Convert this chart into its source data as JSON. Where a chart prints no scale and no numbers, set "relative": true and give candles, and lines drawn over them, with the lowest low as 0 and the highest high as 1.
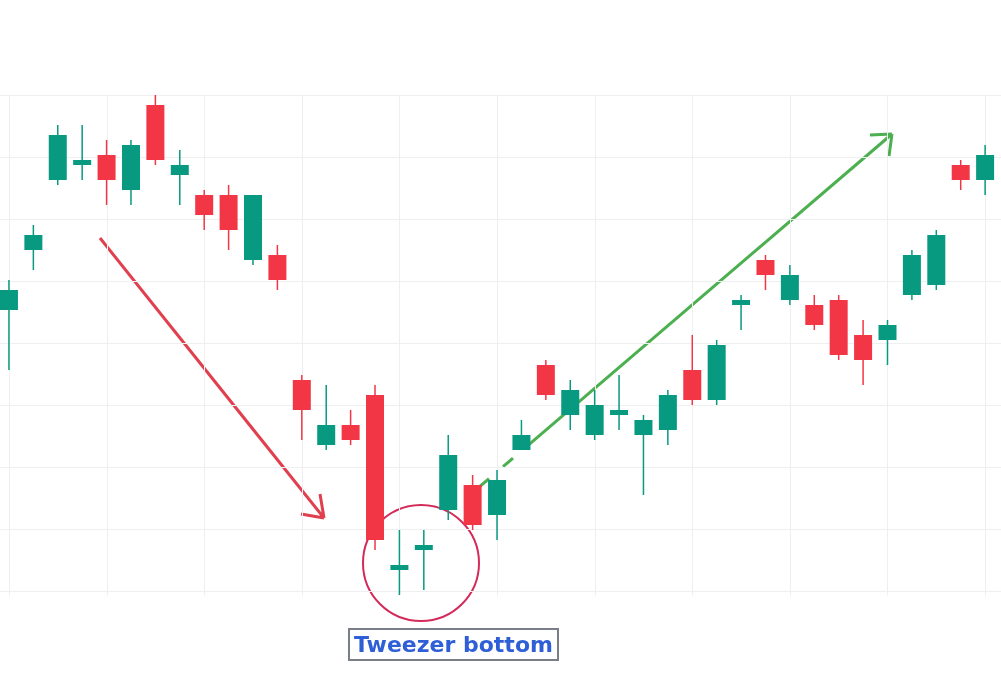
{
  "chart_data": {
    "type": "candlestick",
    "relative": true,
    "grid": true,
    "categories": [
      null,
      null,
      null,
      null,
      null,
      null,
      null,
      null,
      null,
      null,
      null,
      null,
      null,
      null,
      null,
      null,
      null,
      null,
      null,
      null,
      null,
      null,
      null,
      null,
      null,
      null,
      null,
      null,
      null,
      null,
      null,
      null,
      null,
      null,
      null,
      null,
      null,
      null,
      null,
      null,
      null
    ],
    "ohlc": [
      [
        0.57,
        0.63,
        0.45,
        0.61
      ],
      [
        0.69,
        0.74,
        0.65,
        0.72
      ],
      [
        0.83,
        0.94,
        0.82,
        0.92
      ],
      [
        0.86,
        0.94,
        0.83,
        0.87
      ],
      [
        0.88,
        0.91,
        0.78,
        0.83
      ],
      [
        0.81,
        0.91,
        0.78,
        0.9
      ],
      [
        0.98,
        1.0,
        0.86,
        0.87
      ],
      [
        0.84,
        0.89,
        0.78,
        0.86
      ],
      [
        0.8,
        0.81,
        0.73,
        0.76
      ],
      [
        0.8,
        0.82,
        0.69,
        0.73
      ],
      [
        0.67,
        0.8,
        0.66,
        0.8
      ],
      [
        0.68,
        0.7,
        0.61,
        0.63
      ],
      [
        0.43,
        0.44,
        0.31,
        0.37
      ],
      [
        0.3,
        0.42,
        0.29,
        0.34
      ],
      [
        0.34,
        0.37,
        0.3,
        0.31
      ],
      [
        0.4,
        0.42,
        0.09,
        0.11
      ],
      [
        0.05,
        0.13,
        0.0,
        0.06
      ],
      [
        0.09,
        0.13,
        0.01,
        0.1
      ],
      [
        0.17,
        0.32,
        0.15,
        0.28
      ],
      [
        0.22,
        0.24,
        0.13,
        0.14
      ],
      [
        0.16,
        0.25,
        0.11,
        0.23
      ],
      [
        0.29,
        0.35,
        0.29,
        0.32
      ],
      [
        0.46,
        0.47,
        0.39,
        0.4
      ],
      [
        0.36,
        0.43,
        0.33,
        0.41
      ],
      [
        0.32,
        0.41,
        0.31,
        0.38
      ],
      [
        0.36,
        0.44,
        0.33,
        0.37
      ],
      [
        0.32,
        0.36,
        0.2,
        0.35
      ],
      [
        0.33,
        0.41,
        0.3,
        0.4
      ],
      [
        0.45,
        0.52,
        0.38,
        0.39
      ],
      [
        0.39,
        0.51,
        0.38,
        0.5
      ],
      [
        0.58,
        0.6,
        0.53,
        0.59
      ],
      [
        0.67,
        0.68,
        0.61,
        0.64
      ],
      [
        0.59,
        0.66,
        0.58,
        0.64
      ],
      [
        0.58,
        0.6,
        0.53,
        0.54
      ],
      [
        0.59,
        0.6,
        0.47,
        0.48
      ],
      [
        0.52,
        0.55,
        0.42,
        0.47
      ],
      [
        0.51,
        0.55,
        0.46,
        0.54
      ],
      [
        0.6,
        0.69,
        0.59,
        0.68
      ],
      [
        0.62,
        0.73,
        0.61,
        0.72
      ],
      [
        0.86,
        0.87,
        0.81,
        0.83
      ],
      [
        0.83,
        0.9,
        0.8,
        0.88
      ]
    ],
    "colors": [
      "#089981",
      "#089981",
      "#089981",
      "#089981",
      "#f23645",
      "#089981",
      "#f23645",
      "#089981",
      "#f23645",
      "#f23645",
      "#089981",
      "#f23645",
      "#f23645",
      "#089981",
      "#f23645",
      "#f23645",
      "#089981",
      "#089981",
      "#089981",
      "#f23645",
      "#089981",
      "#089981",
      "#f23645",
      "#089981",
      "#089981",
      "#089981",
      "#089981",
      "#089981",
      "#f23645",
      "#089981",
      "#089981",
      "#f23645",
      "#089981",
      "#f23645",
      "#f23645",
      "#f23645",
      "#089981",
      "#089981",
      "#089981",
      "#f23645",
      "#089981"
    ],
    "annotations": [
      "Tweezer bottom"
    ]
  }
}
